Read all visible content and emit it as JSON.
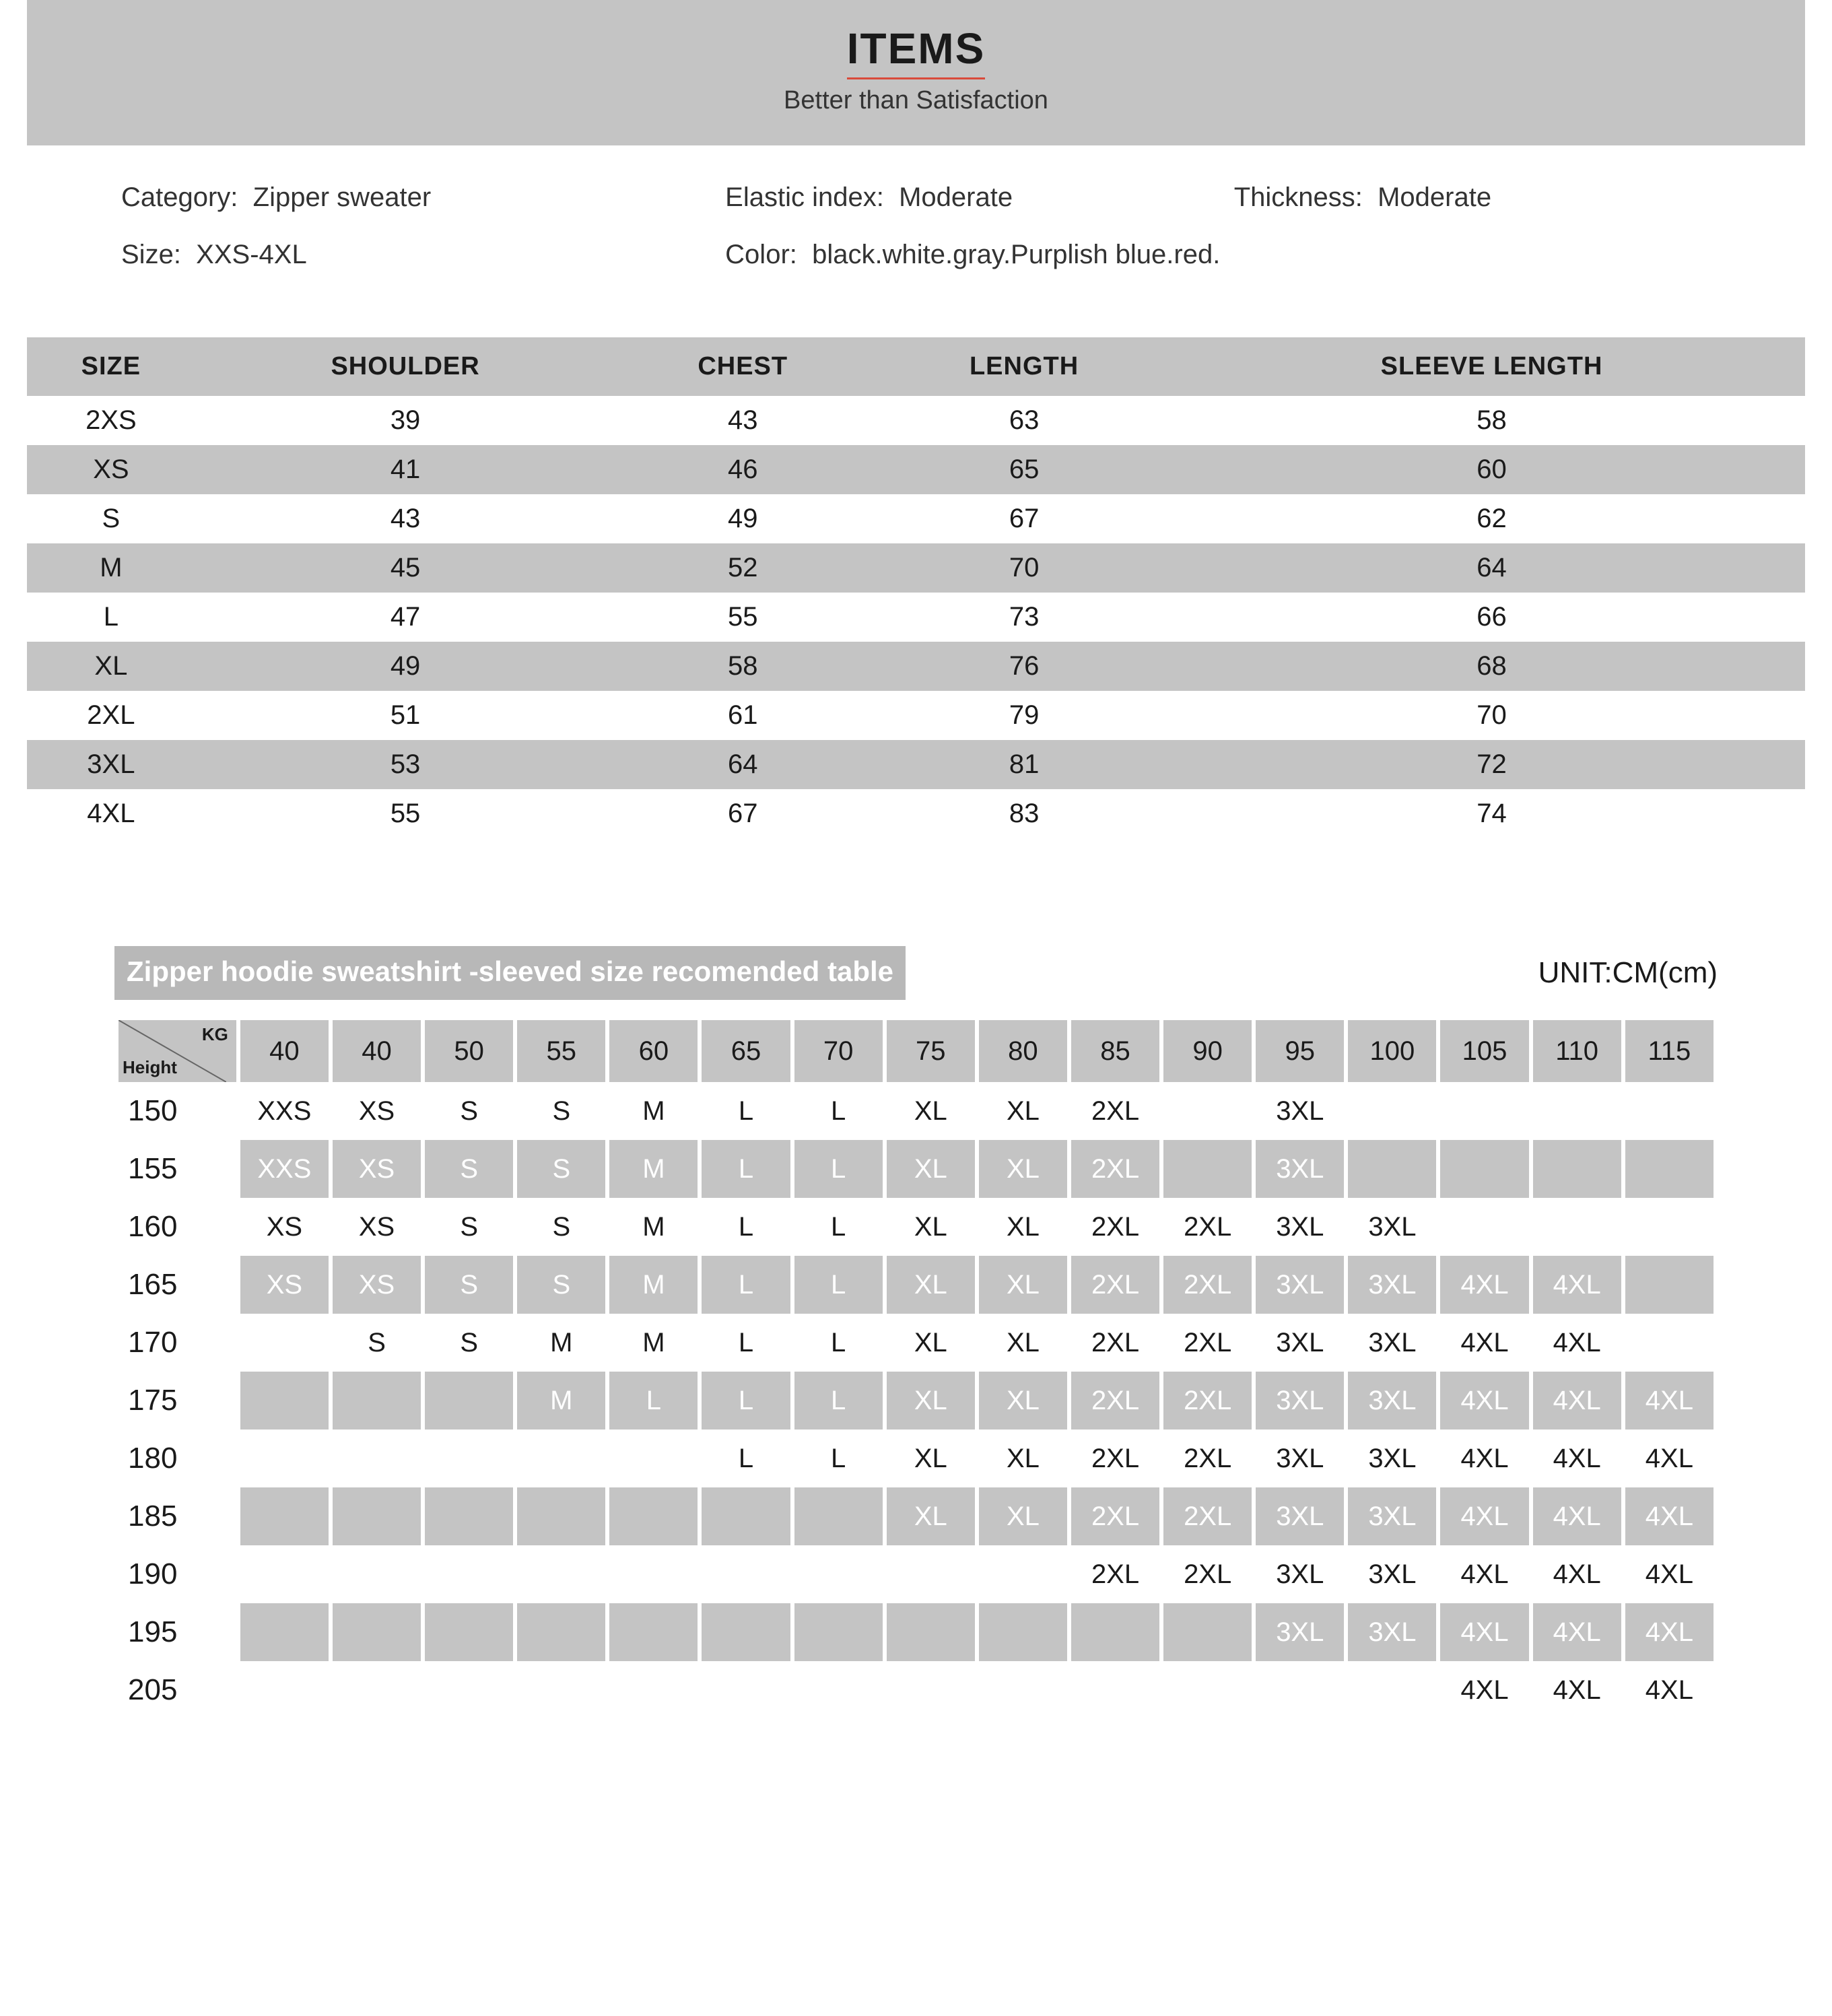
{
  "header": {
    "title": "ITEMS",
    "subtitle": "Better than Satisfaction"
  },
  "meta": {
    "category_label": "Category:",
    "category_value": "Zipper sweater",
    "elastic_label": "Elastic index:",
    "elastic_value": "Moderate",
    "thickness_label": "Thickness:",
    "thickness_value": "Moderate",
    "size_label": "Size:",
    "size_value": "XXS-4XL",
    "color_label": "Color:",
    "color_value": "black.white.gray.Purplish blue.red."
  },
  "size_table": {
    "columns": [
      "SIZE",
      "SHOULDER",
      "CHEST",
      "LENGTH",
      "SLEEVE LENGTH"
    ],
    "rows": [
      [
        "2XS",
        "39",
        "43",
        "63",
        "58"
      ],
      [
        "XS",
        "41",
        "46",
        "65",
        "60"
      ],
      [
        "S",
        "43",
        "49",
        "67",
        "62"
      ],
      [
        "M",
        "45",
        "52",
        "70",
        "64"
      ],
      [
        "L",
        "47",
        "55",
        "73",
        "66"
      ],
      [
        "XL",
        "49",
        "58",
        "76",
        "68"
      ],
      [
        "2XL",
        "51",
        "61",
        "79",
        "70"
      ],
      [
        "3XL",
        "53",
        "64",
        "81",
        "72"
      ],
      [
        "4XL",
        "55",
        "67",
        "83",
        "74"
      ]
    ]
  },
  "rec": {
    "title": "Zipper hoodie  sweatshirt -sleeved size recomended table",
    "unit": "UNIT:CM(cm)",
    "corner_kg": "KG",
    "corner_height": "Height",
    "kg_headers": [
      "40",
      "40",
      "50",
      "55",
      "60",
      "65",
      "70",
      "75",
      "80",
      "85",
      "90",
      "95",
      "100",
      "105",
      "110",
      "115"
    ],
    "heights": [
      "150",
      "155",
      "160",
      "165",
      "170",
      "175",
      "180",
      "185",
      "190",
      "195",
      "205"
    ],
    "rows": [
      [
        "XXS",
        "XS",
        "S",
        "S",
        "M",
        "L",
        "L",
        "XL",
        "XL",
        "2XL",
        "",
        "3XL",
        "",
        "",
        "",
        ""
      ],
      [
        "XXS",
        "XS",
        "S",
        "S",
        "M",
        "L",
        "L",
        "XL",
        "XL",
        "2XL",
        "",
        "3XL",
        "",
        "",
        "",
        ""
      ],
      [
        "XS",
        "XS",
        "S",
        "S",
        "M",
        "L",
        "L",
        "XL",
        "XL",
        "2XL",
        "2XL",
        "3XL",
        "3XL",
        "",
        "",
        ""
      ],
      [
        "XS",
        "XS",
        "S",
        "S",
        "M",
        "L",
        "L",
        "XL",
        "XL",
        "2XL",
        "2XL",
        "3XL",
        "3XL",
        "4XL",
        "4XL",
        ""
      ],
      [
        "",
        "S",
        "S",
        "M",
        "M",
        "L",
        "L",
        "XL",
        "XL",
        "2XL",
        "2XL",
        "3XL",
        "3XL",
        "4XL",
        "4XL",
        ""
      ],
      [
        "",
        "",
        "",
        "M",
        "L",
        "L",
        "L",
        "XL",
        "XL",
        "2XL",
        "2XL",
        "3XL",
        "3XL",
        "4XL",
        "4XL",
        "4XL"
      ],
      [
        "",
        "",
        "",
        "",
        "",
        "L",
        "L",
        "XL",
        "XL",
        "2XL",
        "2XL",
        "3XL",
        "3XL",
        "4XL",
        "4XL",
        "4XL"
      ],
      [
        "",
        "",
        "",
        "",
        "",
        "",
        "",
        "XL",
        "XL",
        "2XL",
        "2XL",
        "3XL",
        "3XL",
        "4XL",
        "4XL",
        "4XL"
      ],
      [
        "",
        "",
        "",
        "",
        "",
        "",
        "",
        "",
        "",
        "2XL",
        "2XL",
        "3XL",
        "3XL",
        "4XL",
        "4XL",
        "4XL"
      ],
      [
        "",
        "",
        "",
        "",
        "",
        "",
        "",
        "",
        "",
        "",
        "",
        "3XL",
        "3XL",
        "4XL",
        "4XL",
        "4XL"
      ],
      [
        "",
        "",
        "",
        "",
        "",
        "",
        "",
        "",
        "",
        "",
        "",
        "",
        "",
        "4XL",
        "4XL",
        "4XL"
      ]
    ]
  },
  "colors": {
    "banner_bg": "#c4c4c4",
    "title_underline": "#d94a3a",
    "text": "#1a1a1a",
    "shaded_text": "#ffffff"
  }
}
